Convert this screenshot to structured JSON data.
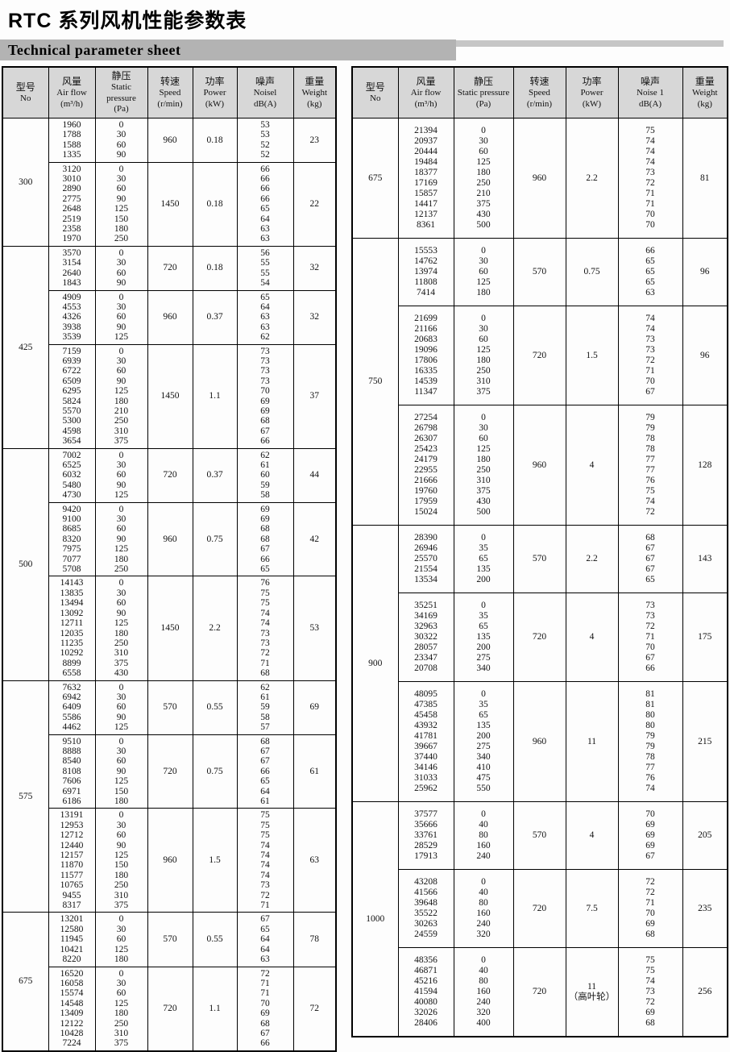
{
  "page": {
    "title": "RTC 系列风机性能参数表",
    "subtitle": "Technical parameter sheet"
  },
  "left_table": {
    "headers": [
      [
        "型号",
        "No"
      ],
      [
        "风量",
        "Air flow",
        "(m³/h)"
      ],
      [
        "静压",
        "Static",
        "pressure",
        "(Pa)"
      ],
      [
        "转速",
        "Speed",
        "(r/min)"
      ],
      [
        "功率",
        "Power",
        "(kW)"
      ],
      [
        "噪声",
        "Noisel",
        "dB(A)"
      ],
      [
        "重量",
        "Weight",
        "(kg)"
      ]
    ],
    "groups": [
      {
        "model": "300",
        "rows": [
          {
            "flows": [
              "1960",
              "1788",
              "1588",
              "1335"
            ],
            "pressures": [
              "0",
              "30",
              "60",
              "90"
            ],
            "speed": "960",
            "power": "0.18",
            "noise": [
              "53",
              "53",
              "52",
              "52"
            ],
            "weight": "23"
          },
          {
            "flows": [
              "3120",
              "3010",
              "2890",
              "2775",
              "2648",
              "2519",
              "2358",
              "1970"
            ],
            "pressures": [
              "0",
              "30",
              "60",
              "90",
              "125",
              "150",
              "180",
              "250"
            ],
            "speed": "1450",
            "power": "0.18",
            "noise": [
              "66",
              "66",
              "66",
              "66",
              "65",
              "64",
              "63",
              "63"
            ],
            "weight": "22"
          }
        ]
      },
      {
        "model": "425",
        "rows": [
          {
            "flows": [
              "3570",
              "3154",
              "2640",
              "1843"
            ],
            "pressures": [
              "0",
              "30",
              "60",
              "90"
            ],
            "speed": "720",
            "power": "0.18",
            "noise": [
              "56",
              "55",
              "55",
              "54"
            ],
            "weight": "32"
          },
          {
            "flows": [
              "4909",
              "4553",
              "4326",
              "3938",
              "3539"
            ],
            "pressures": [
              "0",
              "30",
              "60",
              "90",
              "125"
            ],
            "speed": "960",
            "power": "0.37",
            "noise": [
              "65",
              "64",
              "63",
              "63",
              "62"
            ],
            "weight": "32"
          },
          {
            "flows": [
              "7159",
              "6939",
              "6722",
              "6509",
              "6295",
              "5824",
              "5570",
              "5300",
              "4598",
              "3654"
            ],
            "pressures": [
              "0",
              "30",
              "60",
              "90",
              "125",
              "180",
              "210",
              "250",
              "310",
              "375"
            ],
            "speed": "1450",
            "power": "1.1",
            "noise": [
              "73",
              "73",
              "73",
              "73",
              "70",
              "69",
              "69",
              "68",
              "67",
              "66"
            ],
            "weight": "37"
          }
        ]
      },
      {
        "model": "500",
        "rows": [
          {
            "flows": [
              "7002",
              "6525",
              "6032",
              "5480",
              "4730"
            ],
            "pressures": [
              "0",
              "30",
              "60",
              "90",
              "125"
            ],
            "speed": "720",
            "power": "0.37",
            "noise": [
              "62",
              "61",
              "60",
              "59",
              "58"
            ],
            "weight": "44"
          },
          {
            "flows": [
              "9420",
              "9100",
              "8685",
              "8320",
              "7975",
              "7077",
              "5708"
            ],
            "pressures": [
              "0",
              "30",
              "60",
              "90",
              "125",
              "180",
              "250"
            ],
            "speed": "960",
            "power": "0.75",
            "noise": [
              "69",
              "69",
              "68",
              "68",
              "67",
              "66",
              "65"
            ],
            "weight": "42"
          },
          {
            "flows": [
              "14143",
              "13835",
              "13494",
              "13092",
              "12711",
              "12035",
              "11235",
              "10292",
              "8899",
              "6558"
            ],
            "pressures": [
              "0",
              "30",
              "60",
              "90",
              "125",
              "180",
              "250",
              "310",
              "375",
              "430"
            ],
            "speed": "1450",
            "power": "2.2",
            "noise": [
              "76",
              "75",
              "75",
              "74",
              "74",
              "73",
              "73",
              "72",
              "71",
              "68"
            ],
            "weight": "53"
          }
        ]
      },
      {
        "model": "575",
        "rows": [
          {
            "flows": [
              "7632",
              "6942",
              "6409",
              "5586",
              "4462"
            ],
            "pressures": [
              "0",
              "30",
              "60",
              "90",
              "125"
            ],
            "speed": "570",
            "power": "0.55",
            "noise": [
              "62",
              "61",
              "59",
              "58",
              "57"
            ],
            "weight": "69"
          },
          {
            "flows": [
              "9510",
              "8888",
              "8540",
              "8108",
              "7606",
              "6971",
              "6186"
            ],
            "pressures": [
              "0",
              "30",
              "60",
              "90",
              "125",
              "150",
              "180"
            ],
            "speed": "720",
            "power": "0.75",
            "noise": [
              "68",
              "67",
              "67",
              "66",
              "65",
              "64",
              "61"
            ],
            "weight": "61"
          },
          {
            "flows": [
              "13191",
              "12953",
              "12712",
              "12440",
              "12157",
              "11870",
              "11577",
              "10765",
              "9455",
              "8317"
            ],
            "pressures": [
              "0",
              "30",
              "60",
              "90",
              "125",
              "150",
              "180",
              "250",
              "310",
              "375"
            ],
            "speed": "960",
            "power": "1.5",
            "noise": [
              "75",
              "75",
              "75",
              "74",
              "74",
              "74",
              "74",
              "73",
              "72",
              "71"
            ],
            "weight": "63"
          }
        ]
      },
      {
        "model": "675",
        "rows": [
          {
            "flows": [
              "13201",
              "12580",
              "11945",
              "10421",
              "8220"
            ],
            "pressures": [
              "0",
              "30",
              "60",
              "125",
              "180"
            ],
            "speed": "570",
            "power": "0.55",
            "noise": [
              "67",
              "65",
              "64",
              "64",
              "63"
            ],
            "weight": "78"
          },
          {
            "flows": [
              "16520",
              "16058",
              "15574",
              "14548",
              "13409",
              "12122",
              "10428",
              "7224"
            ],
            "pressures": [
              "0",
              "30",
              "60",
              "125",
              "180",
              "250",
              "310",
              "375"
            ],
            "speed": "720",
            "power": "1.1",
            "noise": [
              "72",
              "71",
              "71",
              "70",
              "69",
              "68",
              "67",
              "66"
            ],
            "weight": "72"
          }
        ]
      }
    ]
  },
  "right_table": {
    "headers": [
      [
        "型号",
        "No"
      ],
      [
        "风量",
        "Air flow",
        "(m³/h)"
      ],
      [
        "静压",
        "Static pressure",
        "(Pa)"
      ],
      [
        "转速",
        "Speed",
        "(r/min)"
      ],
      [
        "功率",
        "Power",
        "(kW)"
      ],
      [
        "噪声",
        "Noise 1",
        "dB(A)"
      ],
      [
        "重量",
        "Weight",
        "(kg)"
      ]
    ],
    "groups": [
      {
        "model": "675",
        "rows": [
          {
            "flows": [
              "21394",
              "20937",
              "20444",
              "19484",
              "18377",
              "17169",
              "15857",
              "14417",
              "12137",
              "8361"
            ],
            "pressures": [
              "0",
              "30",
              "60",
              "125",
              "180",
              "250",
              "210",
              "375",
              "430",
              "500"
            ],
            "speed": "960",
            "power": "2.2",
            "noise": [
              "75",
              "74",
              "74",
              "74",
              "73",
              "72",
              "71",
              "71",
              "70",
              "70"
            ],
            "weight": "81"
          }
        ]
      },
      {
        "model": "750",
        "rows": [
          {
            "flows": [
              "15553",
              "14762",
              "13974",
              "11808",
              "7414"
            ],
            "pressures": [
              "0",
              "30",
              "60",
              "125",
              "180"
            ],
            "speed": "570",
            "power": "0.75",
            "noise": [
              "66",
              "65",
              "65",
              "65",
              "63"
            ],
            "weight": "96"
          },
          {
            "flows": [
              "21699",
              "21166",
              "20683",
              "19096",
              "17806",
              "16335",
              "14539",
              "11347"
            ],
            "pressures": [
              "0",
              "30",
              "60",
              "125",
              "180",
              "250",
              "310",
              "375"
            ],
            "speed": "720",
            "power": "1.5",
            "noise": [
              "74",
              "74",
              "73",
              "73",
              "72",
              "71",
              "70",
              "67"
            ],
            "weight": "96"
          },
          {
            "flows": [
              "27254",
              "26798",
              "26307",
              "25423",
              "24179",
              "22955",
              "21666",
              "19760",
              "17959",
              "15024"
            ],
            "pressures": [
              "0",
              "30",
              "60",
              "125",
              "180",
              "250",
              "310",
              "375",
              "430",
              "500"
            ],
            "speed": "960",
            "power": "4",
            "noise": [
              "79",
              "79",
              "78",
              "78",
              "77",
              "77",
              "76",
              "75",
              "74",
              "72"
            ],
            "weight": "128"
          }
        ]
      },
      {
        "model": "900",
        "rows": [
          {
            "flows": [
              "28390",
              "26946",
              "25570",
              "21554",
              "13534"
            ],
            "pressures": [
              "0",
              "35",
              "65",
              "135",
              "200"
            ],
            "speed": "570",
            "power": "2.2",
            "noise": [
              "68",
              "67",
              "67",
              "67",
              "65"
            ],
            "weight": "143"
          },
          {
            "flows": [
              "35251",
              "34169",
              "32963",
              "30322",
              "28057",
              "23347",
              "20708"
            ],
            "pressures": [
              "0",
              "35",
              "65",
              "135",
              "200",
              "275",
              "340"
            ],
            "speed": "720",
            "power": "4",
            "noise": [
              "73",
              "73",
              "72",
              "71",
              "70",
              "67",
              "66"
            ],
            "weight": "175"
          },
          {
            "flows": [
              "48095",
              "47385",
              "45458",
              "43932",
              "41781",
              "39667",
              "37440",
              "34146",
              "31033",
              "25962"
            ],
            "pressures": [
              "0",
              "35",
              "65",
              "135",
              "200",
              "275",
              "340",
              "410",
              "475",
              "550"
            ],
            "speed": "960",
            "power": "11",
            "noise": [
              "81",
              "81",
              "80",
              "80",
              "79",
              "79",
              "78",
              "77",
              "76",
              "74"
            ],
            "weight": "215"
          }
        ]
      },
      {
        "model": "1000",
        "rows": [
          {
            "flows": [
              "37577",
              "35666",
              "33761",
              "28529",
              "17913"
            ],
            "pressures": [
              "0",
              "40",
              "80",
              "160",
              "240"
            ],
            "speed": "570",
            "power": "4",
            "noise": [
              "70",
              "69",
              "69",
              "69",
              "67"
            ],
            "weight": "205"
          },
          {
            "flows": [
              "43208",
              "41566",
              "39648",
              "35522",
              "30263",
              "24559"
            ],
            "pressures": [
              "0",
              "40",
              "80",
              "160",
              "240",
              "320"
            ],
            "speed": "720",
            "power": "7.5",
            "noise": [
              "72",
              "72",
              "71",
              "70",
              "69",
              "68"
            ],
            "weight": "235"
          },
          {
            "flows": [
              "48356",
              "46871",
              "45216",
              "41594",
              "40080",
              "32026",
              "28406"
            ],
            "pressures": [
              "0",
              "40",
              "80",
              "160",
              "240",
              "320",
              "400"
            ],
            "speed": "720",
            "power": "11\n（高叶轮）",
            "noise": [
              "75",
              "75",
              "74",
              "73",
              "72",
              "69",
              "68"
            ],
            "weight": "256"
          }
        ]
      }
    ]
  }
}
